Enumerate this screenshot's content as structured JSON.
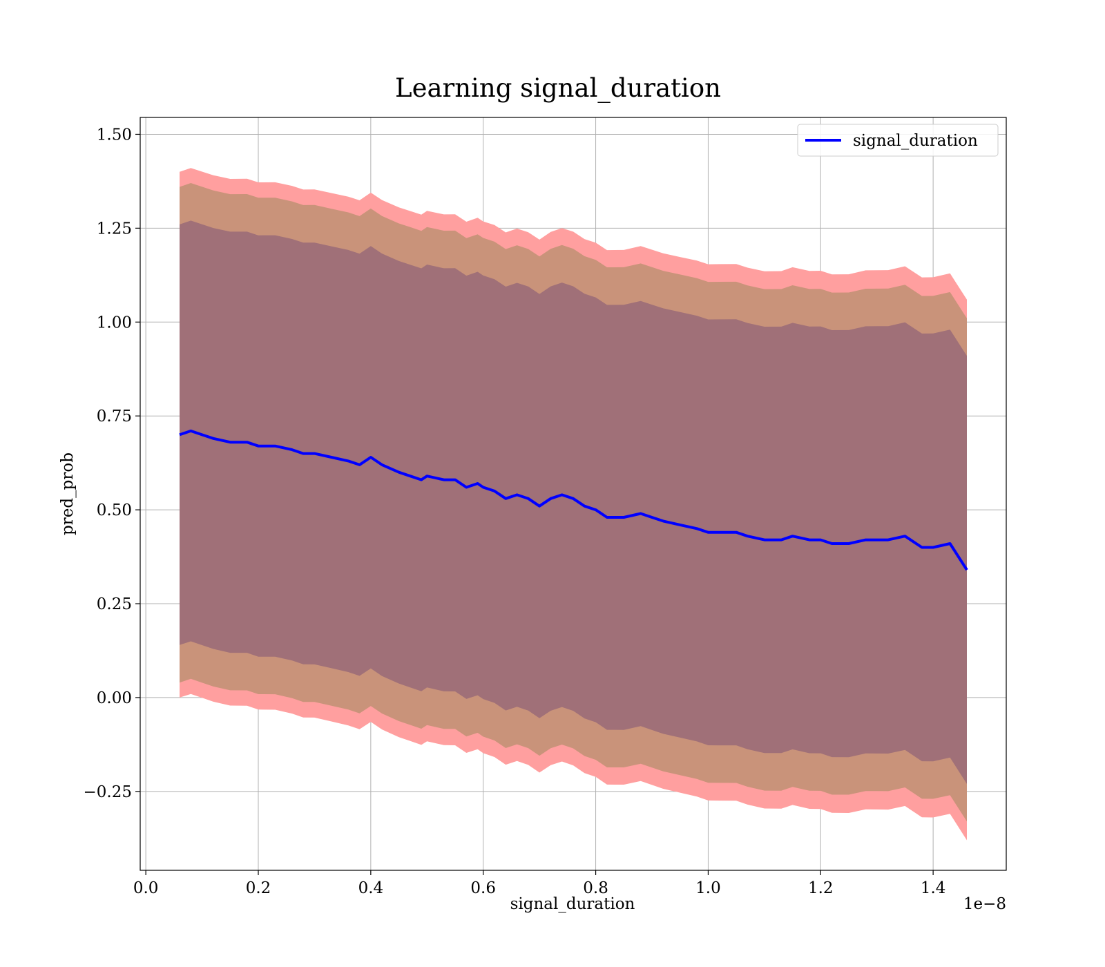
{
  "chart_data": {
    "type": "line",
    "title": "Learning signal_duration",
    "xlabel": "signal_duration",
    "ylabel": "pred_prob",
    "x_offset_text": "1e−8",
    "xlim": [
      -0.01,
      1.53
    ],
    "ylim": [
      -0.46,
      1.545
    ],
    "x_ticks": [
      0.0,
      0.2,
      0.4,
      0.6,
      0.8,
      1.0,
      1.2,
      1.4
    ],
    "x_tick_labels": [
      "0.0",
      "0.2",
      "0.4",
      "0.6",
      "0.8",
      "1.0",
      "1.2",
      "1.4"
    ],
    "y_ticks": [
      -0.25,
      0.0,
      0.25,
      0.5,
      0.75,
      1.0,
      1.25,
      1.5
    ],
    "y_tick_labels": [
      "−0.25",
      "0.00",
      "0.25",
      "0.50",
      "0.75",
      "1.00",
      "1.25",
      "1.50"
    ],
    "grid": true,
    "legend": {
      "position": "top-right",
      "entries": [
        "signal_duration"
      ]
    },
    "colors": {
      "line": "#0000ff",
      "band_outer": "#ff9f9f",
      "band_middle": "#c9937a",
      "band_inner": "#a07078"
    },
    "series": [
      {
        "name": "signal_duration",
        "x": [
          0.06,
          0.08,
          0.1,
          0.12,
          0.15,
          0.18,
          0.2,
          0.23,
          0.26,
          0.28,
          0.3,
          0.33,
          0.36,
          0.38,
          0.4,
          0.42,
          0.45,
          0.47,
          0.49,
          0.5,
          0.53,
          0.55,
          0.57,
          0.59,
          0.6,
          0.62,
          0.64,
          0.66,
          0.68,
          0.7,
          0.72,
          0.74,
          0.76,
          0.78,
          0.8,
          0.82,
          0.85,
          0.88,
          0.9,
          0.92,
          0.95,
          0.98,
          1.0,
          1.02,
          1.05,
          1.07,
          1.1,
          1.13,
          1.15,
          1.18,
          1.2,
          1.22,
          1.25,
          1.28,
          1.3,
          1.32,
          1.35,
          1.38,
          1.4,
          1.43,
          1.46
        ],
        "y": [
          0.7,
          0.71,
          0.7,
          0.69,
          0.68,
          0.68,
          0.67,
          0.67,
          0.66,
          0.65,
          0.65,
          0.64,
          0.63,
          0.62,
          0.64,
          0.62,
          0.6,
          0.59,
          0.58,
          0.59,
          0.58,
          0.58,
          0.56,
          0.57,
          0.56,
          0.55,
          0.53,
          0.54,
          0.53,
          0.51,
          0.53,
          0.54,
          0.53,
          0.51,
          0.5,
          0.48,
          0.48,
          0.49,
          0.48,
          0.47,
          0.46,
          0.45,
          0.44,
          0.44,
          0.44,
          0.43,
          0.42,
          0.42,
          0.43,
          0.42,
          0.42,
          0.41,
          0.41,
          0.42,
          0.42,
          0.42,
          0.43,
          0.4,
          0.4,
          0.41,
          0.34
        ]
      }
    ],
    "bands": [
      {
        "name": "outer",
        "half_width_start": 0.7,
        "half_width_end": 0.72
      },
      {
        "name": "middle",
        "half_width_start": 0.66,
        "half_width_end": 0.67
      },
      {
        "name": "inner",
        "half_width_start": 0.56,
        "half_width_end": 0.57
      }
    ]
  }
}
